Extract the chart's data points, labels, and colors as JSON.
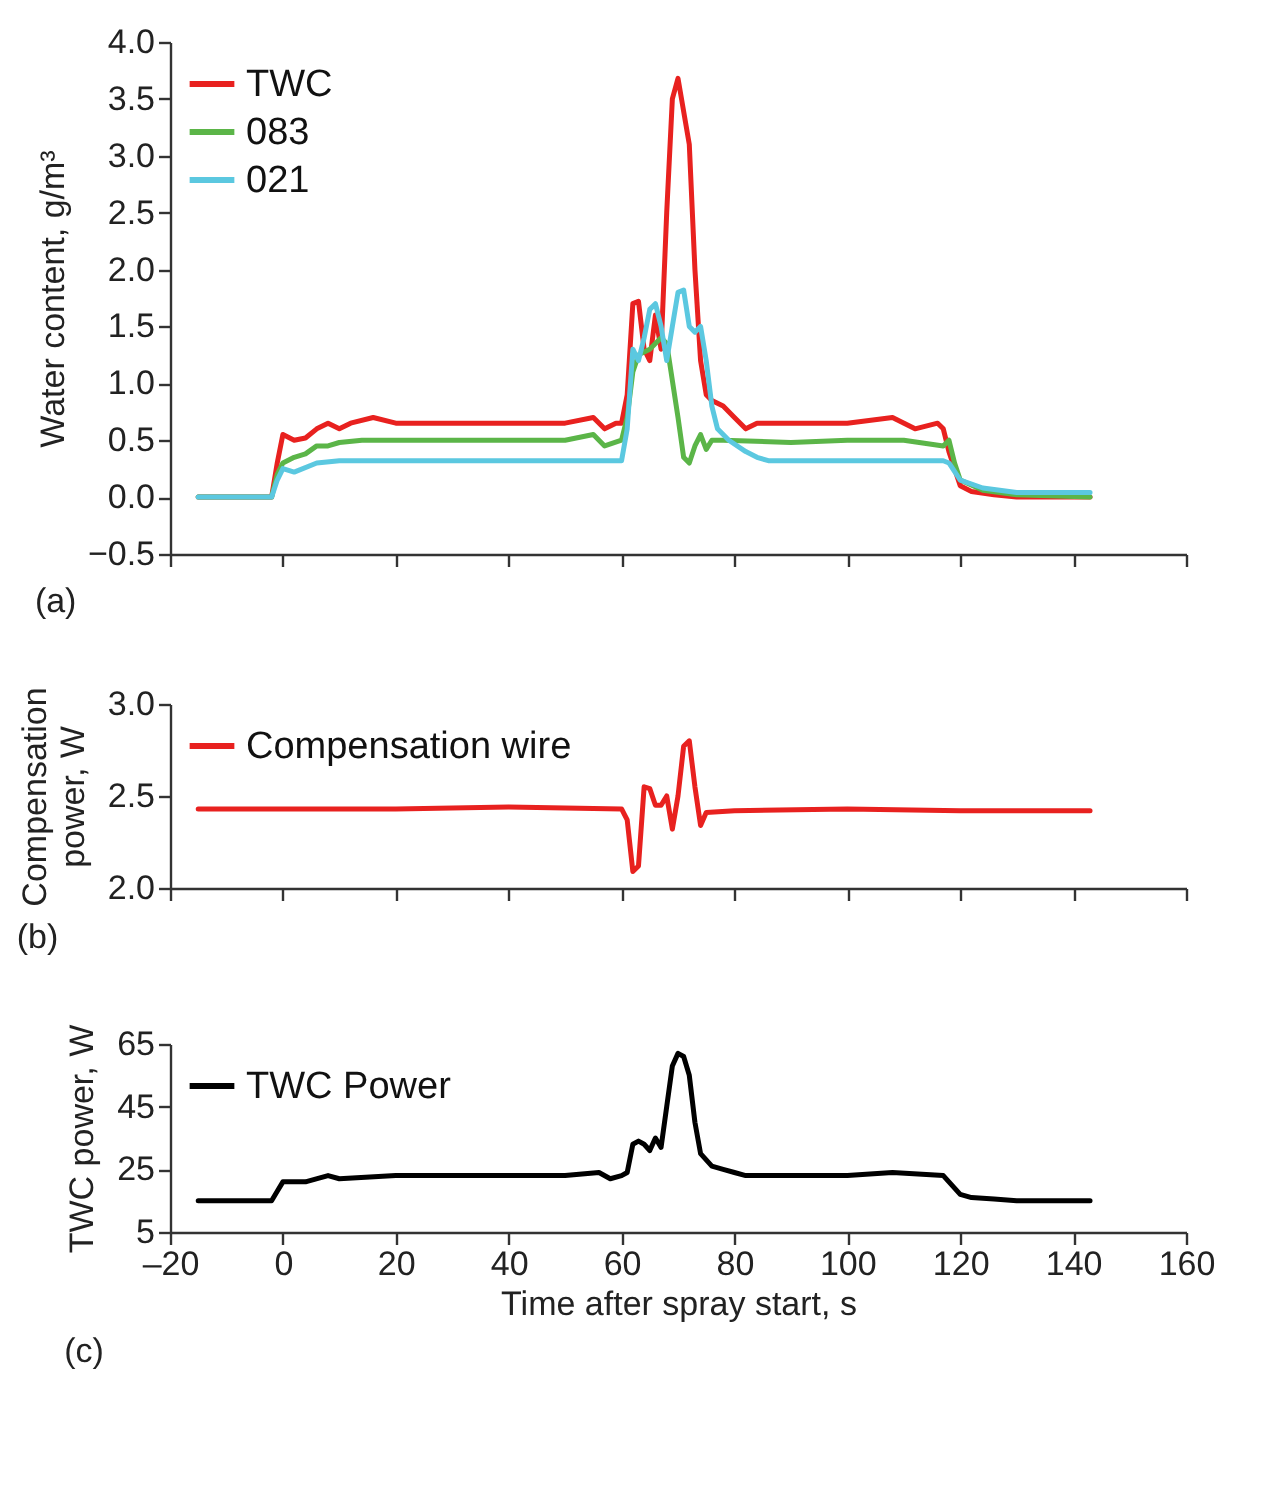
{
  "chart_data": [
    {
      "type": "line",
      "ylabel": "Water content, g/m³",
      "xlim": [
        -20,
        160
      ],
      "xticks": [
        -20,
        0,
        20,
        40,
        60,
        80,
        100,
        120,
        140,
        160
      ],
      "ylim": [
        -0.5,
        4.0
      ],
      "yticks": [
        -0.5,
        {
          "value": 0,
          "label": "0.0"
        },
        0.5,
        {
          "value": 1,
          "label": "1.0"
        },
        1.5,
        {
          "value": 2,
          "label": "2.0"
        },
        2.5,
        {
          "value": 3,
          "label": "3.0"
        },
        3.5,
        {
          "value": 4,
          "label": "4.0"
        }
      ],
      "tick_labels": "y",
      "grid": false,
      "legend": "top left",
      "line_style": "solid",
      "annotations": [
        "(a)"
      ],
      "series": [
        {
          "name": "TWC",
          "color": "#e8211f",
          "x": [
            -15,
            -2,
            -1,
            0,
            2,
            4,
            6,
            8,
            10,
            12,
            16,
            20,
            30,
            40,
            50,
            55,
            57,
            59,
            60,
            61,
            62,
            63,
            64,
            65,
            66,
            67,
            68,
            69,
            70,
            72,
            73,
            74,
            75,
            76,
            78,
            80,
            82,
            84,
            90,
            100,
            108,
            112,
            116,
            117,
            118,
            120,
            122,
            126,
            130,
            143
          ],
          "values": [
            0,
            0,
            0.3,
            0.55,
            0.5,
            0.52,
            0.6,
            0.65,
            0.6,
            0.65,
            0.7,
            0.65,
            0.65,
            0.65,
            0.65,
            0.7,
            0.6,
            0.65,
            0.65,
            0.9,
            1.7,
            1.72,
            1.3,
            1.2,
            1.6,
            1.3,
            2.5,
            3.5,
            3.68,
            3.1,
            2.0,
            1.2,
            0.9,
            0.85,
            0.8,
            0.7,
            0.6,
            0.65,
            0.65,
            0.65,
            0.7,
            0.6,
            0.65,
            0.6,
            0.4,
            0.1,
            0.05,
            0.02,
            0,
            0
          ]
        },
        {
          "name": "083",
          "color": "#5bb548",
          "x": [
            -15,
            -2,
            -1,
            0,
            2,
            4,
            6,
            8,
            10,
            14,
            20,
            30,
            40,
            50,
            55,
            57,
            60,
            61,
            62,
            63,
            65,
            67,
            68,
            70,
            71,
            72,
            73,
            74,
            75,
            76,
            78,
            90,
            100,
            110,
            117,
            118,
            119,
            120,
            124,
            130,
            143
          ],
          "values": [
            0,
            0,
            0.2,
            0.3,
            0.35,
            0.38,
            0.45,
            0.45,
            0.48,
            0.5,
            0.5,
            0.5,
            0.5,
            0.5,
            0.55,
            0.45,
            0.5,
            0.7,
            1.1,
            1.25,
            1.3,
            1.4,
            1.35,
            0.7,
            0.35,
            0.3,
            0.45,
            0.55,
            0.42,
            0.5,
            0.5,
            0.48,
            0.5,
            0.5,
            0.45,
            0.5,
            0.3,
            0.15,
            0.06,
            0.02,
            0
          ]
        },
        {
          "name": "021",
          "color": "#5bc8e0",
          "x": [
            -15,
            -2,
            -1,
            0,
            2,
            6,
            10,
            20,
            30,
            40,
            50,
            60,
            61,
            62,
            63,
            64,
            65,
            66,
            67,
            68,
            69,
            70,
            71,
            72,
            73,
            74,
            75,
            76,
            77,
            79,
            82,
            84,
            86,
            100,
            117,
            118,
            120,
            124,
            130,
            143
          ],
          "values": [
            0,
            0,
            0.15,
            0.25,
            0.22,
            0.3,
            0.32,
            0.32,
            0.32,
            0.32,
            0.32,
            0.32,
            0.6,
            1.3,
            1.2,
            1.4,
            1.65,
            1.7,
            1.5,
            1.2,
            1.5,
            1.8,
            1.82,
            1.5,
            1.45,
            1.5,
            1.2,
            0.8,
            0.6,
            0.5,
            0.4,
            0.35,
            0.32,
            0.32,
            0.32,
            0.3,
            0.15,
            0.08,
            0.04,
            0.04
          ]
        }
      ]
    },
    {
      "type": "line",
      "ylabel": "Compensation power, W",
      "xlim": [
        -20,
        160
      ],
      "xticks": [
        -20,
        0,
        20,
        40,
        60,
        80,
        100,
        120,
        140,
        160
      ],
      "ylim": [
        2.0,
        3.0
      ],
      "yticks": [
        {
          "value": 2,
          "label": "2.0"
        },
        2.5,
        {
          "value": 3,
          "label": "3.0"
        }
      ],
      "tick_labels": "y",
      "grid": false,
      "legend": "top left",
      "line_style": "solid",
      "annotations": [
        "(b)"
      ],
      "series": [
        {
          "name": "Compensation wire",
          "color": "#e8211f",
          "x": [
            -15,
            0,
            20,
            40,
            60,
            61,
            62,
            63,
            64,
            65,
            66,
            67,
            68,
            69,
            70,
            71,
            72,
            73,
            74,
            75,
            80,
            100,
            120,
            143
          ],
          "values": [
            2.43,
            2.43,
            2.43,
            2.44,
            2.43,
            2.37,
            2.09,
            2.12,
            2.55,
            2.54,
            2.45,
            2.45,
            2.5,
            2.32,
            2.5,
            2.77,
            2.8,
            2.55,
            2.34,
            2.41,
            2.42,
            2.43,
            2.42,
            2.42
          ]
        }
      ]
    },
    {
      "type": "line",
      "xlabel": "Time after spray start, s",
      "ylabel": "TWC power, W",
      "xlim": [
        -20,
        160
      ],
      "xticks": [
        {
          "value": -20,
          "label": "–20"
        },
        0,
        20,
        40,
        60,
        80,
        100,
        120,
        140,
        160
      ],
      "ylim": [
        5,
        65
      ],
      "yticks": [
        5,
        25,
        45,
        65
      ],
      "grid": false,
      "legend": "top left",
      "line_style": "solid",
      "annotations": [
        "(c)"
      ],
      "series": [
        {
          "name": "TWC Power",
          "color": "#000000",
          "x": [
            -15,
            -2,
            -1,
            0,
            2,
            4,
            8,
            10,
            20,
            30,
            40,
            50,
            56,
            58,
            60,
            61,
            62,
            63,
            64,
            65,
            66,
            67,
            68,
            69,
            70,
            71,
            72,
            73,
            74,
            76,
            78,
            80,
            82,
            90,
            100,
            108,
            117,
            118,
            119,
            120,
            122,
            126,
            130,
            143
          ],
          "values": [
            15,
            15,
            18,
            21,
            21,
            21,
            23,
            22,
            23,
            23,
            23,
            23,
            24,
            22,
            23,
            24,
            33,
            34,
            33,
            31,
            35,
            32,
            45,
            58,
            62,
            61,
            55,
            40,
            30,
            26,
            25,
            24,
            23,
            23,
            23,
            24,
            23,
            21,
            19,
            17,
            16,
            15.5,
            15,
            15
          ]
        }
      ]
    }
  ]
}
